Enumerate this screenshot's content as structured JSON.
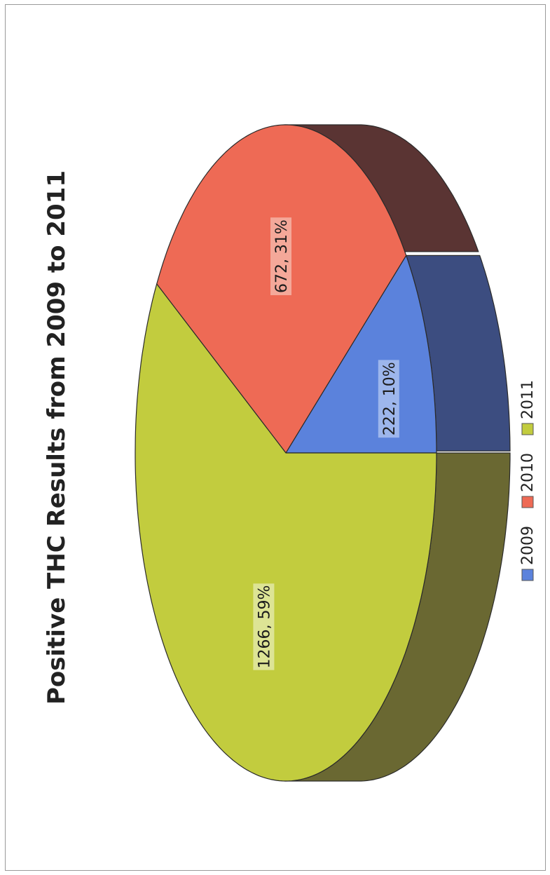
{
  "chart_data": {
    "type": "pie",
    "title": "Positive THC Results from 2009 to 2011",
    "categories": [
      "2009",
      "2010",
      "2011"
    ],
    "values": [
      222,
      672,
      1266
    ],
    "percents": [
      10,
      31,
      59
    ],
    "data_labels": [
      "222, 10%",
      "672, 31%",
      "1266, 59%"
    ],
    "colors": [
      "#5b82dc",
      "#ee6a55",
      "#c2cc3e"
    ],
    "side_colors": [
      "#3c4d80",
      "#5a3433",
      "#6a6832"
    ],
    "label_backgrounds": [
      "#a9c0ee",
      "#f4b3a6",
      "#e2e8a4"
    ],
    "legend": {
      "position": "bottom",
      "entries": [
        "2009",
        "2010",
        "2011"
      ]
    },
    "style": "3d-pie",
    "orientation": "rotated-90-ccw"
  }
}
